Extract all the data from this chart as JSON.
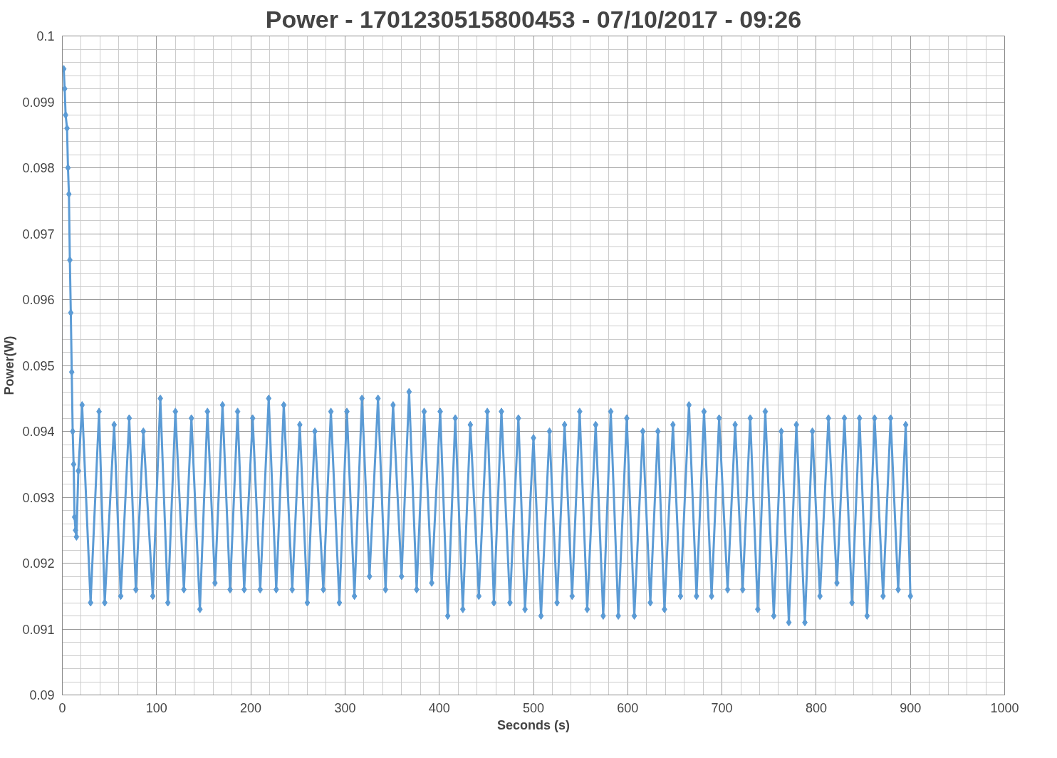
{
  "chart_data": {
    "type": "line",
    "title": "Power - 1701230515800453 - 07/10/2017 - 09:26",
    "xlabel": "Seconds (s)",
    "ylabel": "Power(W)",
    "x": [
      1.5,
      2.5,
      3.5,
      5,
      6,
      7,
      8,
      9,
      10,
      11,
      12,
      13,
      14,
      15,
      17,
      21,
      30,
      39,
      45,
      55,
      62,
      71,
      78,
      86,
      96,
      104,
      112,
      120,
      129,
      137,
      146,
      154,
      162,
      170,
      178,
      186,
      193,
      202,
      210,
      219,
      227,
      235,
      244,
      252,
      260,
      268,
      277,
      285,
      294,
      302,
      310,
      318,
      326,
      335,
      343,
      351,
      360,
      368,
      376,
      384,
      392,
      401,
      409,
      417,
      425,
      433,
      442,
      451,
      458,
      466,
      475,
      484,
      491,
      500,
      508,
      517,
      525,
      533,
      541,
      549,
      557,
      566,
      574,
      582,
      590,
      599,
      607,
      616,
      624,
      632,
      639,
      648,
      656,
      665,
      673,
      681,
      689,
      697,
      706,
      714,
      722,
      730,
      738,
      746,
      755,
      763,
      771,
      779,
      788,
      796,
      804,
      813,
      822,
      830,
      838,
      846,
      854,
      862,
      871,
      879,
      887,
      895,
      900
    ],
    "series": [
      {
        "color": "#5b9bd5",
        "values": [
          0.0995,
          0.0992,
          0.0988,
          0.0986,
          0.098,
          0.0976,
          0.0966,
          0.0958,
          0.0949,
          0.094,
          0.0935,
          0.0927,
          0.0925,
          0.0924,
          0.0934,
          0.0944,
          0.0914,
          0.0943,
          0.0914,
          0.0941,
          0.0915,
          0.0942,
          0.0916,
          0.094,
          0.0915,
          0.0945,
          0.0914,
          0.0943,
          0.0916,
          0.0942,
          0.0913,
          0.0943,
          0.0917,
          0.0944,
          0.0916,
          0.0943,
          0.0916,
          0.0942,
          0.0916,
          0.0945,
          0.0916,
          0.0944,
          0.0916,
          0.0941,
          0.0914,
          0.094,
          0.0916,
          0.0943,
          0.0914,
          0.0943,
          0.0915,
          0.0945,
          0.0918,
          0.0945,
          0.0916,
          0.0944,
          0.0918,
          0.0946,
          0.0916,
          0.0943,
          0.0917,
          0.0943,
          0.0912,
          0.0942,
          0.0913,
          0.0941,
          0.0915,
          0.0943,
          0.0914,
          0.0943,
          0.0914,
          0.0942,
          0.0913,
          0.0939,
          0.0912,
          0.094,
          0.0914,
          0.0941,
          0.0915,
          0.0943,
          0.0913,
          0.0941,
          0.0912,
          0.0943,
          0.0912,
          0.0942,
          0.0912,
          0.094,
          0.0914,
          0.094,
          0.0913,
          0.0941,
          0.0915,
          0.0944,
          0.0915,
          0.0943,
          0.0915,
          0.0942,
          0.0916,
          0.0941,
          0.0916,
          0.0942,
          0.0913,
          0.0943,
          0.0912,
          0.094,
          0.0911,
          0.0941,
          0.0911,
          0.094,
          0.0915,
          0.0942,
          0.0917,
          0.0942,
          0.0914,
          0.0942,
          0.0912,
          0.0942,
          0.0915,
          0.0942,
          0.0916,
          0.0941,
          0.0915
        ]
      }
    ],
    "xlim": [
      0,
      1000
    ],
    "xticks": [
      0,
      100,
      200,
      300,
      400,
      500,
      600,
      700,
      800,
      900,
      1000
    ],
    "ylim": [
      0.09,
      0.1
    ],
    "yticks": [
      0.09,
      0.091,
      0.092,
      0.093,
      0.094,
      0.095,
      0.096,
      0.097,
      0.098,
      0.099,
      {
        "value": 0.1,
        "label": "0.1"
      }
    ],
    "grid": true,
    "marker": "diamond",
    "line_style": "solid"
  }
}
